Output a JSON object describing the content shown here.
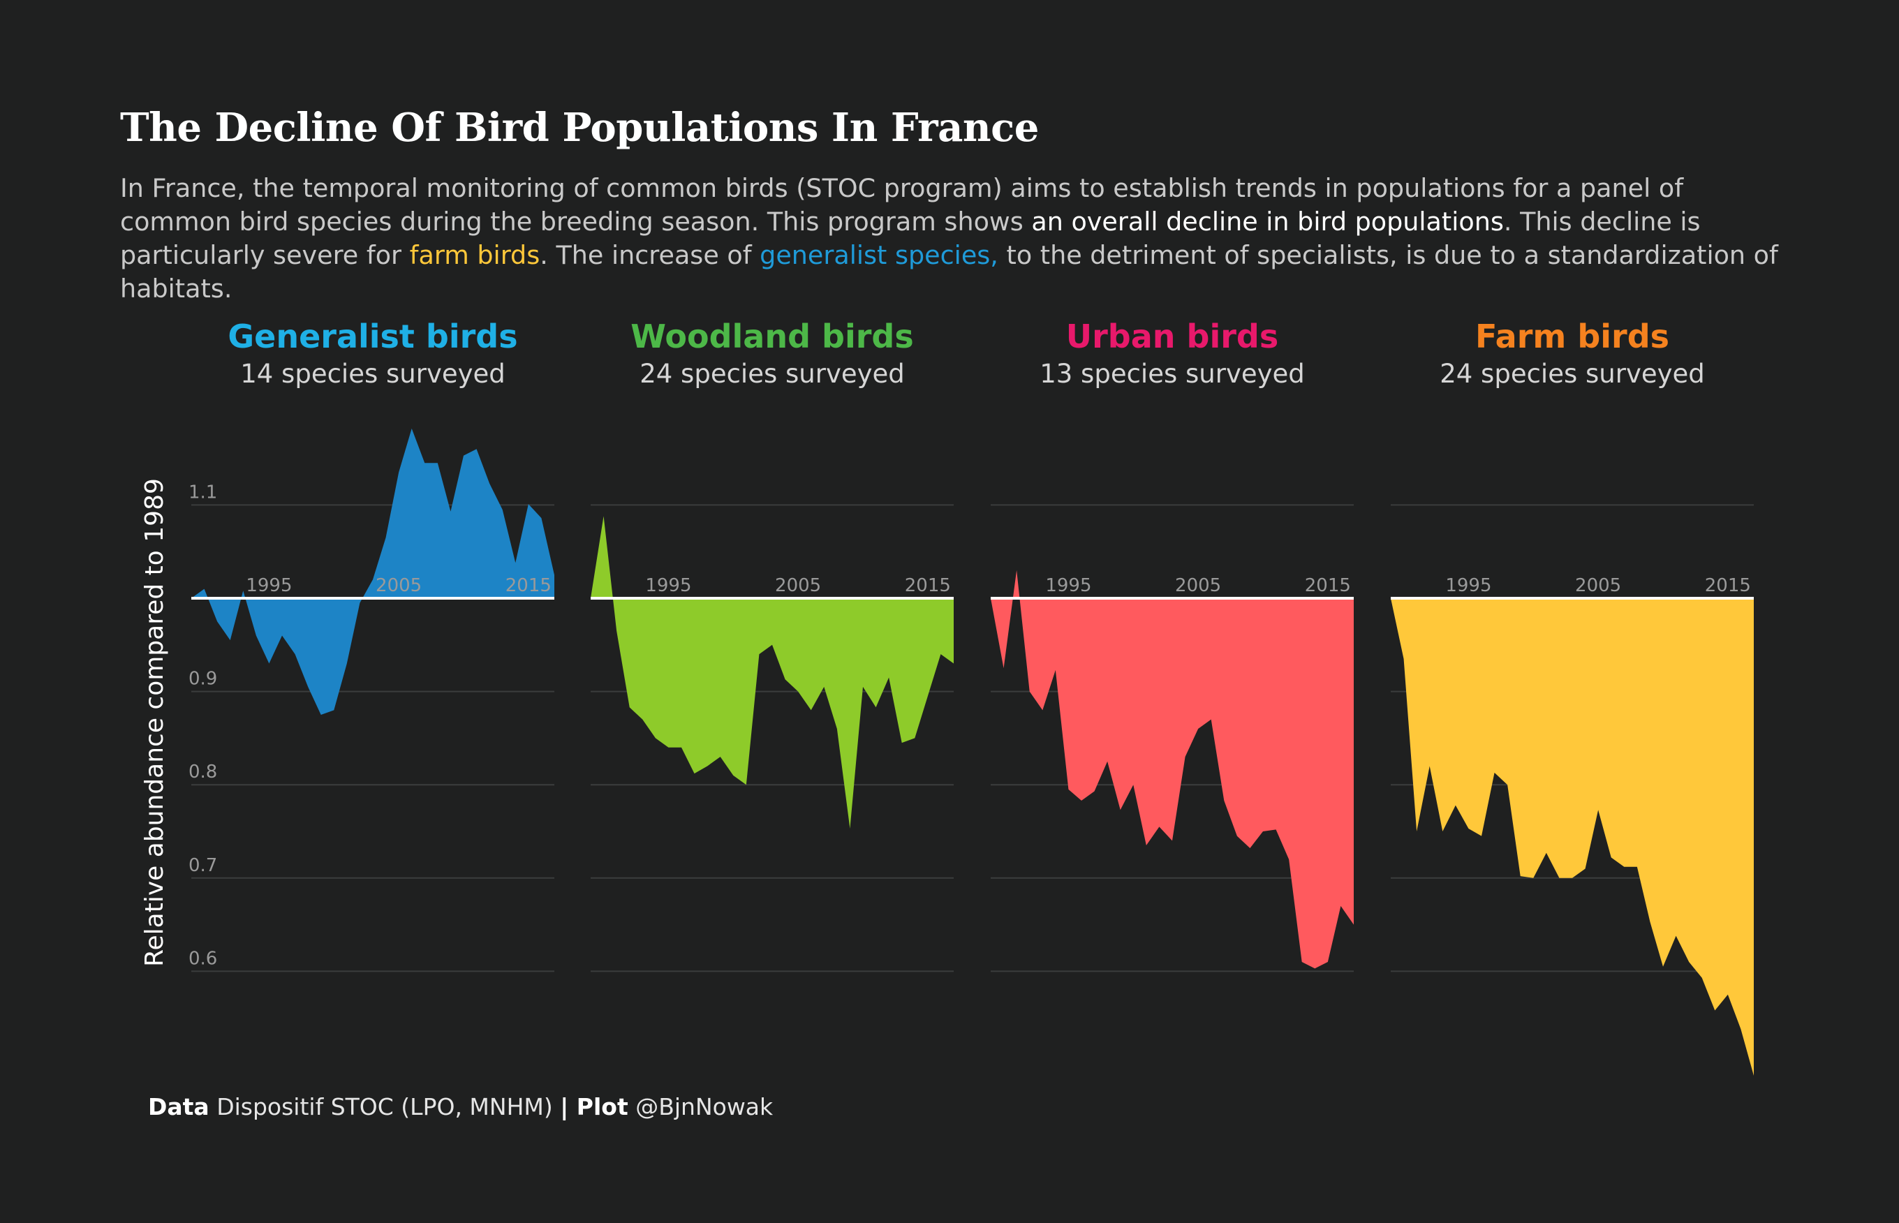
{
  "header": {
    "title": "The Decline Of Bird Populations In France",
    "subtitle_parts": [
      "In France, the temporal monitoring of common birds (STOC program) aims to establish trends in populations for a panel of common bird species during the breeding season. This program shows ",
      "an overall decline in bird populations",
      ". This decline is particularly severe for ",
      "farm birds",
      ". The increase of ",
      "generalist species,",
      " to the detriment of specialists, is due to a standardization of habitats."
    ]
  },
  "caption": {
    "data_label": "Data",
    "data_text": " Dispositif STOC (LPO, MNHM) ",
    "separator": "|",
    "plot_label": " Plot",
    "plot_text": " @BjnNowak"
  },
  "chart_data": {
    "type": "area",
    "ylabel": "Relative abundance compared to 1989",
    "y_ticks": [
      "1.1",
      "0.9",
      "0.8",
      "0.7",
      "0.6"
    ],
    "y_tick_values": [
      1.1,
      0.9,
      0.8,
      0.7,
      0.6
    ],
    "x_ticks": [
      1995,
      2005,
      2015
    ],
    "x_tick_labels": [
      "1995",
      "2005",
      "2015"
    ],
    "x_range": [
      1989,
      2017
    ],
    "y_range": [
      0.5,
      1.2
    ],
    "baseline": 1.0,
    "grid": true,
    "years": [
      1989,
      1990,
      1991,
      1992,
      1993,
      1994,
      1995,
      1996,
      1997,
      1998,
      1999,
      2000,
      2001,
      2002,
      2003,
      2004,
      2005,
      2006,
      2007,
      2008,
      2009,
      2010,
      2011,
      2012,
      2013,
      2014,
      2015,
      2016,
      2017
    ],
    "series": [
      {
        "name": "Generalist birds",
        "species": "14 species surveyed",
        "title_color": "#1fb0e6",
        "fill_color": "#1d84c6",
        "values": [
          1.0,
          1.01,
          0.975,
          0.955,
          1.008,
          0.96,
          0.93,
          0.96,
          0.94,
          0.905,
          0.875,
          0.88,
          0.93,
          0.995,
          1.02,
          1.065,
          1.135,
          1.182,
          1.145,
          1.145,
          1.093,
          1.153,
          1.16,
          1.123,
          1.095,
          1.038,
          1.101,
          1.086,
          1.025
        ]
      },
      {
        "name": "Woodland birds",
        "species": "24 species surveyed",
        "title_color": "#4db848",
        "fill_color": "#8ecb2a",
        "values": [
          1.0,
          1.088,
          0.965,
          0.883,
          0.87,
          0.85,
          0.84,
          0.84,
          0.812,
          0.82,
          0.83,
          0.81,
          0.8,
          0.94,
          0.95,
          0.913,
          0.9,
          0.88,
          0.905,
          0.86,
          0.753,
          0.905,
          0.883,
          0.915,
          0.845,
          0.85,
          0.895,
          0.94,
          0.93
        ]
      },
      {
        "name": "Urban birds",
        "species": "13 species surveyed",
        "title_color": "#e8196b",
        "fill_color": "#ff5a5e",
        "values": [
          1.0,
          0.925,
          1.03,
          0.9,
          0.88,
          0.923,
          0.795,
          0.783,
          0.793,
          0.825,
          0.773,
          0.8,
          0.735,
          0.755,
          0.74,
          0.83,
          0.86,
          0.87,
          0.783,
          0.745,
          0.732,
          0.75,
          0.752,
          0.72,
          0.61,
          0.603,
          0.61,
          0.67,
          0.65
        ]
      },
      {
        "name": "Farm birds",
        "species": "24 species surveyed",
        "title_color": "#f5821f",
        "fill_color": "#ffc83a",
        "values": [
          1.0,
          0.935,
          0.75,
          0.82,
          0.75,
          0.778,
          0.753,
          0.745,
          0.813,
          0.8,
          0.702,
          0.7,
          0.727,
          0.7,
          0.7,
          0.71,
          0.773,
          0.722,
          0.712,
          0.712,
          0.653,
          0.605,
          0.638,
          0.61,
          0.593,
          0.558,
          0.575,
          0.538,
          0.488
        ]
      }
    ]
  }
}
